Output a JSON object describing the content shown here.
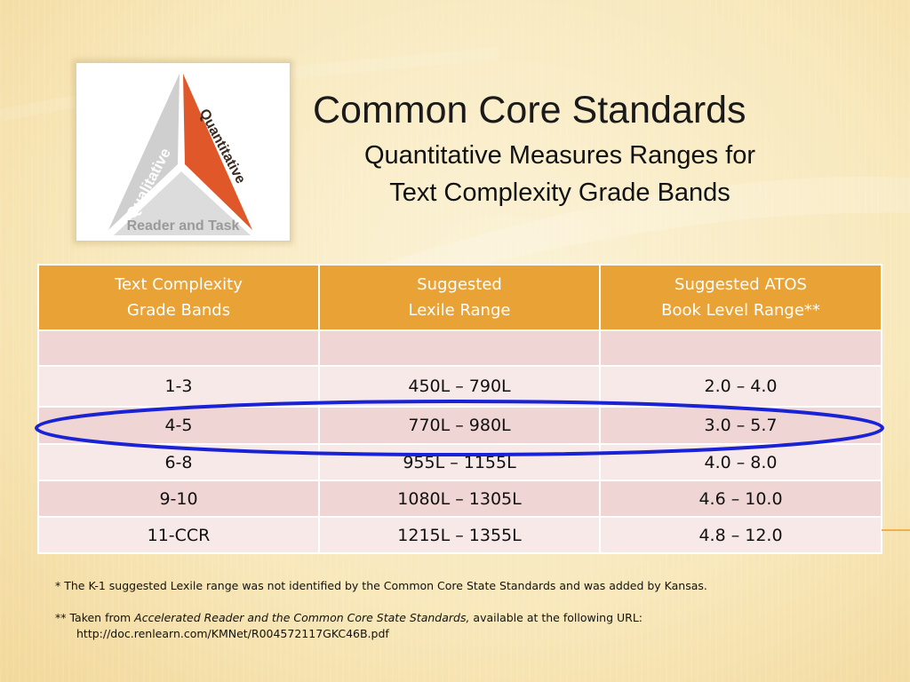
{
  "title": "Common Core Standards",
  "subtitle_line1": "Quantitative Measures Ranges for",
  "subtitle_line2": "Text Complexity Grade Bands",
  "logo": {
    "label_qualitative": "Qualitative",
    "label_quantitative": "Quantitative",
    "label_reader_task": "Reader and Task",
    "colors": {
      "quantitative": "#e0572a",
      "qualitative": "#cfcfcf",
      "reader_task": "#dcdcdc"
    }
  },
  "table": {
    "headers": [
      {
        "line1": "Text Complexity",
        "line2": "Grade Bands"
      },
      {
        "line1": "Suggested",
        "line2": "Lexile Range"
      },
      {
        "line1": "Suggested ATOS",
        "line2": "Book Level Range**"
      }
    ],
    "rows": [
      [
        "",
        "",
        ""
      ],
      [
        "1-3",
        "450L – 790L",
        "2.0 – 4.0"
      ],
      [
        "4-5",
        "770L – 980L",
        "3.0 – 5.7"
      ],
      [
        "6-8",
        "955L – 1155L",
        "4.0 – 8.0"
      ],
      [
        "9-10",
        "1080L – 1305L",
        "4.6 – 10.0"
      ],
      [
        "11-CCR",
        "1215L – 1355L",
        "4.8 – 12.0"
      ]
    ],
    "header_color": "#e9a235",
    "highlight_color": "#1a22d6"
  },
  "footnotes": {
    "note1": "* The K-1 suggested Lexile range was not identified by the Common Core State Standards and was added by Kansas.",
    "note2_prefix": "** Taken from ",
    "note2_title": "Accelerated Reader and the Common Core State Standards,",
    "note2_suffix": " available at the following URL:",
    "note2_url": "http://doc.renlearn.com/KMNet/R004572117GKC46B.pdf"
  }
}
